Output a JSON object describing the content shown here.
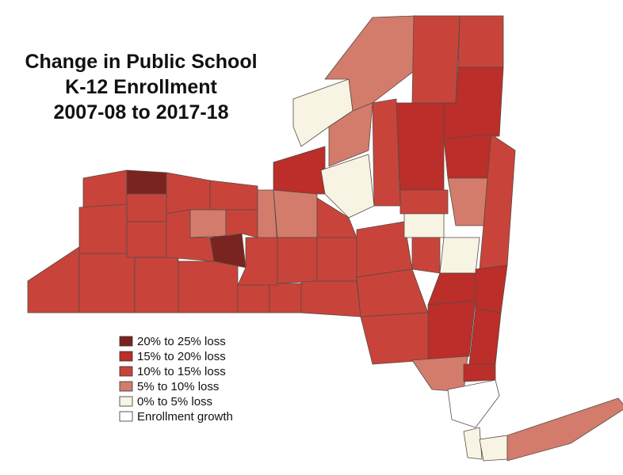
{
  "title": [
    "Change in Public School",
    "K-12 Enrollment",
    "2007-08 to 2017-18"
  ],
  "legend": [
    {
      "label": "20% to 25% loss",
      "color": "#7a2420"
    },
    {
      "label": "15% to 20% loss",
      "color": "#bb2e29"
    },
    {
      "label": "10% to 15% loss",
      "color": "#c8443a"
    },
    {
      "label": "5% to 10% loss",
      "color": "#d37c6c"
    },
    {
      "label": "0% to 5% loss",
      "color": "#f8f4e4"
    },
    {
      "label": "Enrollment growth",
      "color": "#ffffff"
    }
  ]
}
